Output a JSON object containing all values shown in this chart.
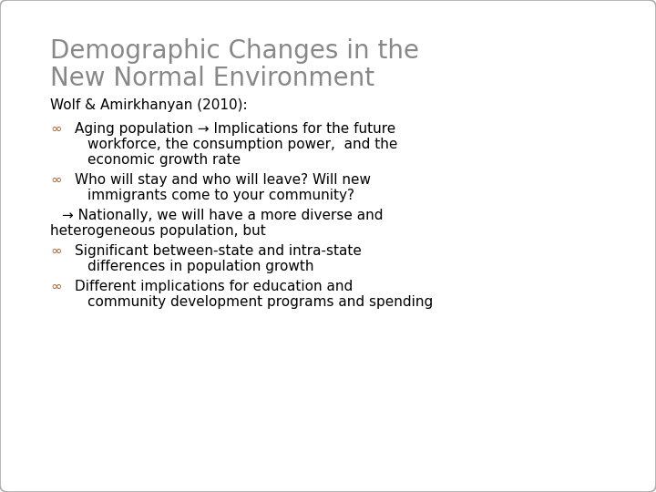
{
  "title_line1": "Demographic Changes in the",
  "title_line2": "New Normal Environment",
  "title_color": "#888888",
  "title_fontsize": 20,
  "body_fontsize": 11,
  "background_color": "#ffffff",
  "border_color": "#aaaaaa",
  "bullet_color": "#b05a2a",
  "text_color": "#000000",
  "author_line": "Wolf & Amirkhanyan (2010):",
  "bullet_symbol": "∞"
}
